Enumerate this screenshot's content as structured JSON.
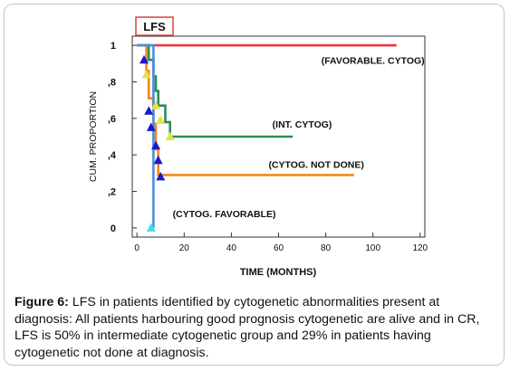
{
  "chart_data": {
    "type": "line",
    "badge": "LFS",
    "xlabel": "TIME (MONTHS)",
    "ylabel": "CUM. PROPORTION",
    "xlim": [
      -2,
      122
    ],
    "ylim": [
      -0.05,
      1.05
    ],
    "xticks": [
      0,
      20,
      40,
      60,
      80,
      100,
      120
    ],
    "xtick_labels": [
      "0",
      "20",
      "40",
      "60",
      "80",
      "100",
      "120"
    ],
    "yticks": [
      0,
      0.2,
      0.4,
      0.6,
      0.8,
      1.0
    ],
    "ytick_labels": [
      "0",
      ",2",
      ",4",
      ",6",
      ",8",
      "1"
    ],
    "grid": false,
    "series": [
      {
        "name": "(FAVORABLE. CYTOG)",
        "color": "#e8373f",
        "points": [
          [
            0,
            1.0
          ],
          [
            110,
            1.0
          ]
        ],
        "markers": [],
        "marker_color": "#e8373f",
        "label_at": [
          100,
          0.9
        ]
      },
      {
        "name": "(INT. CYTOG)",
        "color": "#2e8b57",
        "points": [
          [
            0,
            1.0
          ],
          [
            5,
            1.0
          ],
          [
            5,
            0.92
          ],
          [
            7,
            0.92
          ],
          [
            7,
            0.83
          ],
          [
            8,
            0.83
          ],
          [
            8,
            0.75
          ],
          [
            9,
            0.75
          ],
          [
            9,
            0.67
          ],
          [
            12,
            0.67
          ],
          [
            12,
            0.58
          ],
          [
            14,
            0.58
          ],
          [
            14,
            0.5
          ],
          [
            66,
            0.5
          ]
        ],
        "markers": [
          [
            4,
            0.84
          ],
          [
            8,
            0.67
          ],
          [
            10,
            0.59
          ],
          [
            14,
            0.5
          ]
        ],
        "marker_color": "#e8e04a",
        "label_at": [
          70,
          0.55
        ]
      },
      {
        "name": "(CYTOG. NOT DONE)",
        "color": "#f5861f",
        "points": [
          [
            0,
            1.0
          ],
          [
            4,
            1.0
          ],
          [
            4,
            0.86
          ],
          [
            5,
            0.86
          ],
          [
            5,
            0.71
          ],
          [
            7,
            0.71
          ],
          [
            7,
            0.57
          ],
          [
            8,
            0.57
          ],
          [
            8,
            0.43
          ],
          [
            9,
            0.43
          ],
          [
            9,
            0.29
          ],
          [
            92,
            0.29
          ]
        ],
        "markers": [],
        "marker_color": "#f5861f",
        "label_at": [
          76,
          0.33
        ]
      },
      {
        "name": "(CYTOG. FAVORABLE)",
        "color": "#4a90d9",
        "points": [
          [
            0,
            1.0
          ],
          [
            7,
            1.0
          ],
          [
            7,
            0.0
          ]
        ],
        "markers": [
          [
            3,
            0.92
          ],
          [
            5,
            0.64
          ],
          [
            6,
            0.55
          ],
          [
            8,
            0.45
          ],
          [
            9,
            0.37
          ],
          [
            10,
            0.28
          ],
          [
            6,
            0.0
          ]
        ],
        "marker_color": "#1a1ac8",
        "last_marker_color": "#40e0e8",
        "label_at": [
          37,
          0.06
        ]
      }
    ]
  },
  "caption": {
    "label": "Figure 6:",
    "text": " LFS in patients identified by cytogenetic abnormalities present at diagnosis: All patients harbouring good prognosis cytogenetic are alive and in CR, LFS is 50% in intermediate cytogenetic group and 29% in patients having cytogenetic not done at diagnosis."
  }
}
